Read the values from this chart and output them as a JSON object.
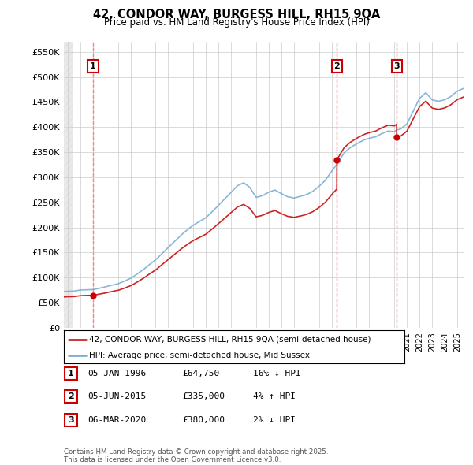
{
  "title": "42, CONDOR WAY, BURGESS HILL, RH15 9QA",
  "subtitle": "Price paid vs. HM Land Registry's House Price Index (HPI)",
  "ylabel_ticks": [
    "£0",
    "£50K",
    "£100K",
    "£150K",
    "£200K",
    "£250K",
    "£300K",
    "£350K",
    "£400K",
    "£450K",
    "£500K",
    "£550K"
  ],
  "ytick_values": [
    0,
    50000,
    100000,
    150000,
    200000,
    250000,
    300000,
    350000,
    400000,
    450000,
    500000,
    550000
  ],
  "ylim": [
    0,
    570000
  ],
  "xlim_start": 1993.7,
  "xlim_end": 2025.5,
  "sale_dates": [
    1996.02,
    2015.42,
    2020.18
  ],
  "sale_prices": [
    64750,
    335000,
    380000
  ],
  "sale_labels": [
    "1",
    "2",
    "3"
  ],
  "vline_color": "#cc0000",
  "hpi_line_color": "#7bafd4",
  "price_line_color": "#cc2222",
  "legend_entries": [
    "42, CONDOR WAY, BURGESS HILL, RH15 9QA (semi-detached house)",
    "HPI: Average price, semi-detached house, Mid Sussex"
  ],
  "table_rows": [
    [
      "1",
      "05-JAN-1996",
      "£64,750",
      "16% ↓ HPI"
    ],
    [
      "2",
      "05-JUN-2015",
      "£335,000",
      "4% ↑ HPI"
    ],
    [
      "3",
      "06-MAR-2020",
      "£380,000",
      "2% ↓ HPI"
    ]
  ],
  "footnote": "Contains HM Land Registry data © Crown copyright and database right 2025.\nThis data is licensed under the Open Government Licence v3.0.",
  "bg_color": "#ffffff",
  "grid_color": "#cccccc"
}
